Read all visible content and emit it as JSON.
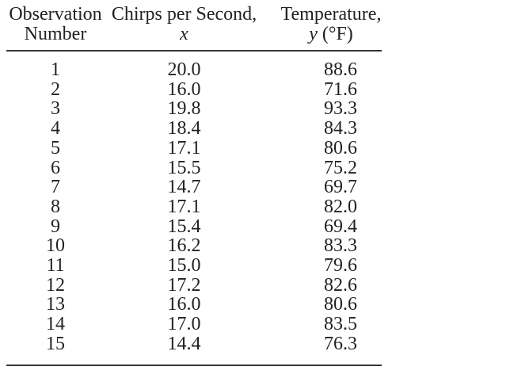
{
  "colors": {
    "background": "#ffffff",
    "text": "#222222",
    "rule": "#353535"
  },
  "table": {
    "headers": {
      "col1_line1": "Observation",
      "col1_line2": "Number",
      "col2_line1": "Chirps per Second,",
      "col2_line2_var": "x",
      "col3_line1": "Temperature,",
      "col3_line2_var": "y",
      "col3_line2_unit": "(°F)"
    }
  },
  "chart_data": {
    "type": "table",
    "columns": [
      "Observation Number",
      "Chirps per Second, x",
      "Temperature, y (°F)"
    ],
    "rows": [
      [
        1,
        "20.0",
        "88.6"
      ],
      [
        2,
        "16.0",
        "71.6"
      ],
      [
        3,
        "19.8",
        "93.3"
      ],
      [
        4,
        "18.4",
        "84.3"
      ],
      [
        5,
        "17.1",
        "80.6"
      ],
      [
        6,
        "15.5",
        "75.2"
      ],
      [
        7,
        "14.7",
        "69.7"
      ],
      [
        8,
        "17.1",
        "82.0"
      ],
      [
        9,
        "15.4",
        "69.4"
      ],
      [
        10,
        "16.2",
        "83.3"
      ],
      [
        11,
        "15.0",
        "79.6"
      ],
      [
        12,
        "17.2",
        "82.6"
      ],
      [
        13,
        "16.0",
        "80.6"
      ],
      [
        14,
        "17.0",
        "83.5"
      ],
      [
        15,
        "14.4",
        "76.3"
      ]
    ],
    "layout": {
      "grid": false,
      "header_rule": true,
      "bottom_rule": true
    }
  }
}
